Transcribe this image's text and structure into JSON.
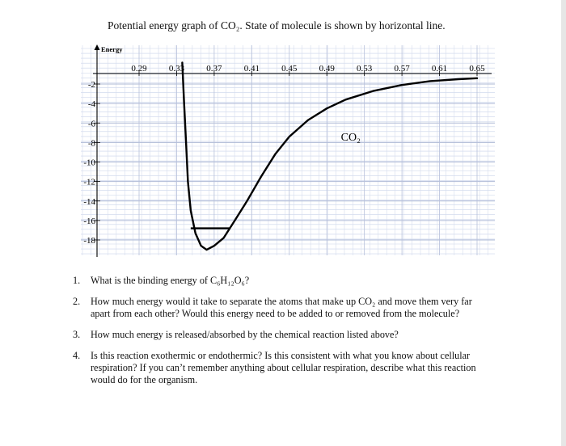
{
  "title": "Potential energy graph of CO₂.  State of molecule is shown by horizontal line.",
  "chart_data": {
    "type": "line",
    "title": "Potential energy graph of CO₂.  State of molecule is shown by horizontal line.",
    "ylabel": "Energy",
    "xlabel": "",
    "x_ticks": [
      "0.29",
      "0.33",
      "0.37",
      "0.41",
      "0.45",
      "0.49",
      "0.53",
      "0.57",
      "0.61",
      "0.65"
    ],
    "x_tick_values": [
      0.29,
      0.33,
      0.37,
      0.41,
      0.45,
      0.49,
      0.53,
      0.57,
      0.61,
      0.65
    ],
    "y_ticks": [
      "-2",
      "-4",
      "-6",
      "-8",
      "-10",
      "-12",
      "-14",
      "-16",
      "-18"
    ],
    "y_tick_values": [
      -2,
      -4,
      -6,
      -8,
      -10,
      -12,
      -14,
      -16,
      -18
    ],
    "xlim": [
      0.25,
      0.66
    ],
    "ylim": [
      -20,
      0
    ],
    "grid": true,
    "series": [
      {
        "color": "#000000",
        "points": [
          [
            0.336,
            0.2
          ],
          [
            0.338,
            -4
          ],
          [
            0.34,
            -8
          ],
          [
            0.342,
            -12
          ],
          [
            0.345,
            -15
          ],
          [
            0.35,
            -17.3
          ],
          [
            0.356,
            -18.6
          ],
          [
            0.362,
            -19.0
          ],
          [
            0.37,
            -18.6
          ],
          [
            0.38,
            -17.8
          ],
          [
            0.392,
            -16.0
          ],
          [
            0.405,
            -14.0
          ],
          [
            0.42,
            -11.5
          ],
          [
            0.435,
            -9.2
          ],
          [
            0.45,
            -7.4
          ],
          [
            0.47,
            -5.7
          ],
          [
            0.49,
            -4.5
          ],
          [
            0.51,
            -3.6
          ],
          [
            0.54,
            -2.7
          ],
          [
            0.57,
            -2.1
          ],
          [
            0.6,
            -1.7
          ],
          [
            0.63,
            -1.5
          ],
          [
            0.65,
            -1.4
          ]
        ]
      }
    ],
    "state_line": {
      "x_start": 0.345,
      "x_end": 0.387,
      "y": -16.8,
      "label": ""
    },
    "annotations": [
      {
        "text": "CO₂",
        "x": 0.505,
        "y": -7.8
      }
    ]
  },
  "questions": [
    {
      "num": "1.",
      "text": "What is the binding energy of C₆H₁₂O₆?"
    },
    {
      "num": "2.",
      "text": "How much energy would it take to separate the atoms that make up CO₂ and move them very far apart from each other?  Would this energy need to be added to or removed from the molecule?"
    },
    {
      "num": "3.",
      "text": "How much energy is released/absorbed by the chemical reaction listed above?"
    },
    {
      "num": "4.",
      "text": "Is this reaction exothermic or endothermic?  Is this consistent with what you know about cellular respiration?  If you can’t remember anything about cellular respiration, describe what this reaction would do for the organism."
    }
  ]
}
